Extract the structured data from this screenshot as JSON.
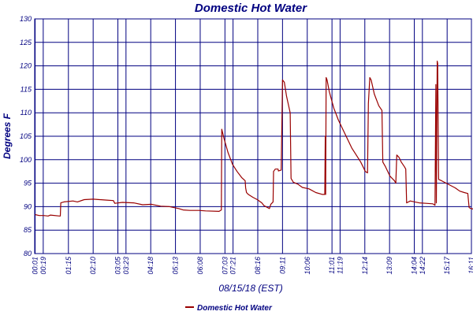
{
  "chart_data": {
    "type": "line",
    "title": "Domestic Hot Water",
    "xlabel": "08/15/18 (EST)",
    "ylabel": "Degrees F",
    "ylim": [
      80,
      130
    ],
    "yticks": [
      80,
      85,
      90,
      95,
      100,
      105,
      110,
      115,
      120,
      125,
      130
    ],
    "xlim": [
      0,
      971
    ],
    "x_ticks": [
      {
        "label": "00:01",
        "t": 1
      },
      {
        "label": "00:19",
        "t": 19
      },
      {
        "label": "01:15",
        "t": 75
      },
      {
        "label": "02:10",
        "t": 130
      },
      {
        "label": "03:05",
        "t": 185
      },
      {
        "label": "03:23",
        "t": 203
      },
      {
        "label": "04:18",
        "t": 258
      },
      {
        "label": "05:13",
        "t": 313
      },
      {
        "label": "06:08",
        "t": 368
      },
      {
        "label": "07:03",
        "t": 423
      },
      {
        "label": "07:21",
        "t": 441
      },
      {
        "label": "08:16",
        "t": 496
      },
      {
        "label": "09:11",
        "t": 551
      },
      {
        "label": "10:06",
        "t": 606
      },
      {
        "label": "11:01",
        "t": 661
      },
      {
        "label": "11:19",
        "t": 679
      },
      {
        "label": "12:14",
        "t": 734
      },
      {
        "label": "13:09",
        "t": 789
      },
      {
        "label": "14:04",
        "t": 844
      },
      {
        "label": "14:22",
        "t": 862
      },
      {
        "label": "15:17",
        "t": 917
      },
      {
        "label": "16:11",
        "t": 971
      }
    ],
    "grid": true,
    "legend": "bottom-center",
    "series": [
      {
        "name": "Domestic Hot Water",
        "color": "#990000",
        "points": [
          [
            1,
            88.3
          ],
          [
            10,
            88.1
          ],
          [
            20,
            88.1
          ],
          [
            30,
            88.0
          ],
          [
            35,
            88.2
          ],
          [
            55,
            88.0
          ],
          [
            57,
            88.0
          ],
          [
            58,
            90.8
          ],
          [
            65,
            91.0
          ],
          [
            85,
            91.2
          ],
          [
            95,
            91.0
          ],
          [
            110,
            91.5
          ],
          [
            130,
            91.6
          ],
          [
            160,
            91.4
          ],
          [
            175,
            91.3
          ],
          [
            178,
            90.7
          ],
          [
            195,
            90.9
          ],
          [
            220,
            90.8
          ],
          [
            240,
            90.4
          ],
          [
            260,
            90.5
          ],
          [
            280,
            90.1
          ],
          [
            300,
            90.0
          ],
          [
            320,
            89.6
          ],
          [
            330,
            89.3
          ],
          [
            345,
            89.2
          ],
          [
            365,
            89.2
          ],
          [
            380,
            89.1
          ],
          [
            410,
            89.0
          ],
          [
            415,
            89.3
          ],
          [
            416,
            106.5
          ],
          [
            421,
            104.5
          ],
          [
            430,
            101.5
          ],
          [
            440,
            99.0
          ],
          [
            450,
            97.5
          ],
          [
            460,
            96.2
          ],
          [
            468,
            95.5
          ],
          [
            469,
            94.0
          ],
          [
            471,
            93.0
          ],
          [
            475,
            92.6
          ],
          [
            485,
            92.0
          ],
          [
            495,
            91.5
          ],
          [
            505,
            90.8
          ],
          [
            510,
            90.2
          ],
          [
            522,
            89.6
          ],
          [
            525,
            90.5
          ],
          [
            530,
            91.0
          ],
          [
            531,
            97.5
          ],
          [
            535,
            98.0
          ],
          [
            541,
            98.0
          ],
          [
            542,
            97.6
          ],
          [
            548,
            97.8
          ],
          [
            551,
            117.0
          ],
          [
            555,
            116.5
          ],
          [
            560,
            113.5
          ],
          [
            568,
            110.0
          ],
          [
            570,
            96.0
          ],
          [
            575,
            95.2
          ],
          [
            585,
            94.8
          ],
          [
            595,
            94.1
          ],
          [
            610,
            93.8
          ],
          [
            625,
            93.0
          ],
          [
            640,
            92.6
          ],
          [
            645,
            92.6
          ],
          [
            646,
            105.0
          ],
          [
            647,
            92.6
          ],
          [
            648,
            117.5
          ],
          [
            650,
            117.0
          ],
          [
            655,
            114.5
          ],
          [
            665,
            111.0
          ],
          [
            675,
            108.5
          ],
          [
            685,
            106.5
          ],
          [
            695,
            104.5
          ],
          [
            705,
            102.5
          ],
          [
            715,
            101.0
          ],
          [
            725,
            99.5
          ],
          [
            730,
            98.5
          ],
          [
            735,
            97.5
          ],
          [
            740,
            97.2
          ],
          [
            742,
            112.0
          ],
          [
            745,
            117.5
          ],
          [
            748,
            117.0
          ],
          [
            755,
            114.0
          ],
          [
            765,
            111.5
          ],
          [
            772,
            110.5
          ],
          [
            774,
            99.5
          ],
          [
            780,
            98.5
          ],
          [
            790,
            96.5
          ],
          [
            800,
            95.5
          ],
          [
            803,
            95.0
          ],
          [
            805,
            101.0
          ],
          [
            810,
            100.5
          ],
          [
            815,
            99.5
          ],
          [
            822,
            98.5
          ],
          [
            825,
            98.0
          ],
          [
            827,
            90.8
          ],
          [
            835,
            91.2
          ],
          [
            845,
            91.0
          ],
          [
            855,
            90.8
          ],
          [
            870,
            90.7
          ],
          [
            885,
            90.6
          ],
          [
            890,
            90.3
          ],
          [
            892,
            116.0
          ],
          [
            893,
            90.8
          ],
          [
            895,
            121.0
          ],
          [
            896,
            120.5
          ],
          [
            898,
            95.8
          ],
          [
            905,
            95.5
          ],
          [
            915,
            95.0
          ],
          [
            925,
            94.5
          ],
          [
            935,
            94.0
          ],
          [
            945,
            93.3
          ],
          [
            955,
            93.0
          ],
          [
            963,
            92.8
          ],
          [
            966,
            89.8
          ],
          [
            970,
            89.6
          ],
          [
            975,
            89.5
          ],
          [
            985,
            89.6
          ],
          [
            992,
            89.4
          ],
          [
            1000,
            89.3
          ]
        ]
      }
    ]
  }
}
